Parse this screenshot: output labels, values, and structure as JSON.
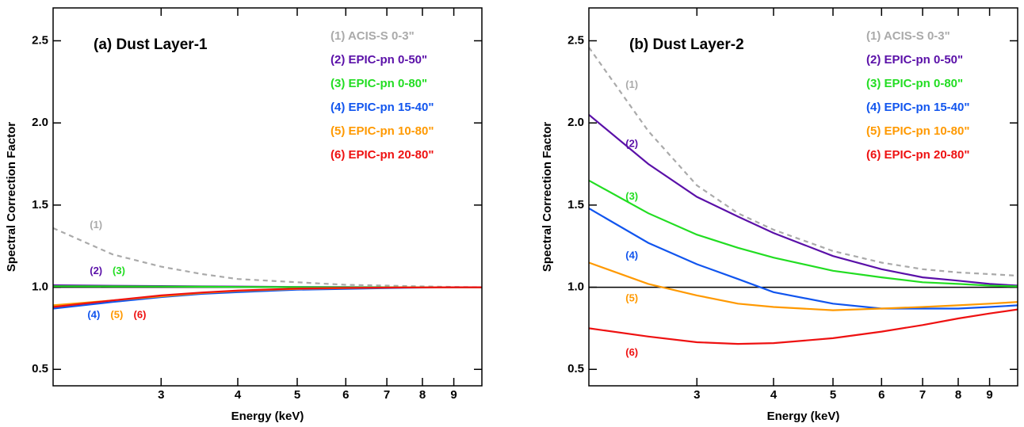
{
  "chart_data": [
    {
      "type": "line",
      "title": "(a) Dust Layer-1",
      "x_label": "Energy (keV)",
      "y_label": "Spectral Correction Factor",
      "xscale": "log",
      "xlim": [
        2,
        10
      ],
      "ylim": [
        0.4,
        2.7
      ],
      "xticks": [
        3,
        4,
        5,
        6,
        7,
        8,
        9
      ],
      "yticks": [
        0.5,
        {
          "value": 1,
          "label": "1.0"
        },
        1.5,
        {
          "value": 2,
          "label": "2.0"
        },
        2.5
      ],
      "hline": 1,
      "x": [
        2,
        2.5,
        3,
        3.5,
        4,
        5,
        6,
        7,
        8,
        9,
        10
      ],
      "series": [
        {
          "name": "(1) ACIS-S 0-3\"",
          "color": "#aaaaaa",
          "dashed": true,
          "values": [
            1.36,
            1.2,
            1.125,
            1.08,
            1.05,
            1.03,
            1.015,
            1.01,
            1.005,
            1.002,
            1.0
          ]
        },
        {
          "name": "(2) EPIC-pn 0-50\"",
          "color": "#5a10a8",
          "values": [
            1.012,
            1.009,
            1.007,
            1.005,
            1.004,
            1.002,
            1.001,
            1.0,
            1.0,
            1.0,
            1.0
          ]
        },
        {
          "name": "(3) EPIC-pn 0-80\"",
          "color": "#22dd22",
          "values": [
            1.006,
            1.005,
            1.004,
            1.003,
            1.002,
            1.001,
            1.0,
            1.0,
            1.0,
            1.0,
            1.0
          ]
        },
        {
          "name": "(4) EPIC-pn 15-40\"",
          "color": "#1155ee",
          "values": [
            0.87,
            0.91,
            0.94,
            0.96,
            0.97,
            0.985,
            0.99,
            0.995,
            0.998,
            0.999,
            1.0
          ]
        },
        {
          "name": "(5) EPIC-pn 10-80\"",
          "color": "#ff9900",
          "values": [
            0.89,
            0.92,
            0.945,
            0.965,
            0.978,
            0.99,
            0.995,
            0.998,
            0.999,
            1.0,
            1.0
          ]
        },
        {
          "name": "(6) EPIC-pn 20-80\"",
          "color": "#ee1111",
          "values": [
            0.88,
            0.92,
            0.95,
            0.968,
            0.98,
            0.992,
            0.996,
            0.998,
            0.999,
            1.0,
            1.0
          ]
        }
      ],
      "annotations": [
        {
          "text": "(1)",
          "x": 2.35,
          "y": 1.376,
          "color": "#aaaaaa"
        },
        {
          "text": "(2)",
          "x": 2.35,
          "y": 1.096,
          "color": "#5a10a8"
        },
        {
          "text": "(3)",
          "x": 2.56,
          "y": 1.096,
          "color": "#22dd22"
        },
        {
          "text": "(4)",
          "x": 2.33,
          "y": 0.83,
          "color": "#1155ee"
        },
        {
          "text": "(5)",
          "x": 2.54,
          "y": 0.83,
          "color": "#ff9900"
        },
        {
          "text": "(6)",
          "x": 2.77,
          "y": 0.83,
          "color": "#ee1111"
        }
      ]
    },
    {
      "type": "line",
      "title": "(b) Dust Layer-2",
      "x_label": "Energy (keV)",
      "y_label": "Spectral Correction Factor",
      "xscale": "log",
      "xlim": [
        2,
        10
      ],
      "ylim": [
        0.4,
        2.7
      ],
      "xticks": [
        3,
        4,
        5,
        6,
        7,
        8,
        9
      ],
      "yticks": [
        0.5,
        {
          "value": 1,
          "label": "1.0"
        },
        1.5,
        {
          "value": 2,
          "label": "2.0"
        },
        2.5
      ],
      "hline": 1,
      "x": [
        2,
        2.5,
        3,
        3.5,
        4,
        5,
        6,
        7,
        8,
        9,
        10
      ],
      "series": [
        {
          "name": "(1) ACIS-S 0-3\"",
          "color": "#aaaaaa",
          "dashed": true,
          "values": [
            2.46,
            1.95,
            1.62,
            1.45,
            1.35,
            1.22,
            1.15,
            1.11,
            1.09,
            1.08,
            1.07
          ]
        },
        {
          "name": "(2) EPIC-pn 0-50\"",
          "color": "#5a10a8",
          "values": [
            2.05,
            1.75,
            1.55,
            1.43,
            1.33,
            1.19,
            1.11,
            1.06,
            1.04,
            1.02,
            1.01
          ]
        },
        {
          "name": "(3) EPIC-pn 0-80\"",
          "color": "#22dd22",
          "values": [
            1.65,
            1.45,
            1.32,
            1.24,
            1.18,
            1.1,
            1.06,
            1.03,
            1.02,
            1.01,
            1.005
          ]
        },
        {
          "name": "(4) EPIC-pn 15-40\"",
          "color": "#1155ee",
          "values": [
            1.48,
            1.27,
            1.14,
            1.05,
            0.97,
            0.9,
            0.87,
            0.87,
            0.87,
            0.88,
            0.89
          ]
        },
        {
          "name": "(5) EPIC-pn 10-80\"",
          "color": "#ff9900",
          "values": [
            1.15,
            1.02,
            0.95,
            0.9,
            0.88,
            0.86,
            0.87,
            0.88,
            0.89,
            0.9,
            0.91
          ]
        },
        {
          "name": "(6) EPIC-pn 20-80\"",
          "color": "#ee1111",
          "values": [
            0.75,
            0.7,
            0.665,
            0.655,
            0.66,
            0.69,
            0.73,
            0.77,
            0.81,
            0.84,
            0.865
          ]
        }
      ],
      "annotations": [
        {
          "text": "(1)",
          "x": 2.35,
          "y": 2.23,
          "color": "#aaaaaa"
        },
        {
          "text": "(2)",
          "x": 2.35,
          "y": 1.87,
          "color": "#5a10a8"
        },
        {
          "text": "(3)",
          "x": 2.35,
          "y": 1.55,
          "color": "#22dd22"
        },
        {
          "text": "(4)",
          "x": 2.35,
          "y": 1.19,
          "color": "#1155ee"
        },
        {
          "text": "(5)",
          "x": 2.35,
          "y": 0.93,
          "color": "#ff9900"
        },
        {
          "text": "(6)",
          "x": 2.35,
          "y": 0.6,
          "color": "#ee1111"
        }
      ]
    }
  ]
}
